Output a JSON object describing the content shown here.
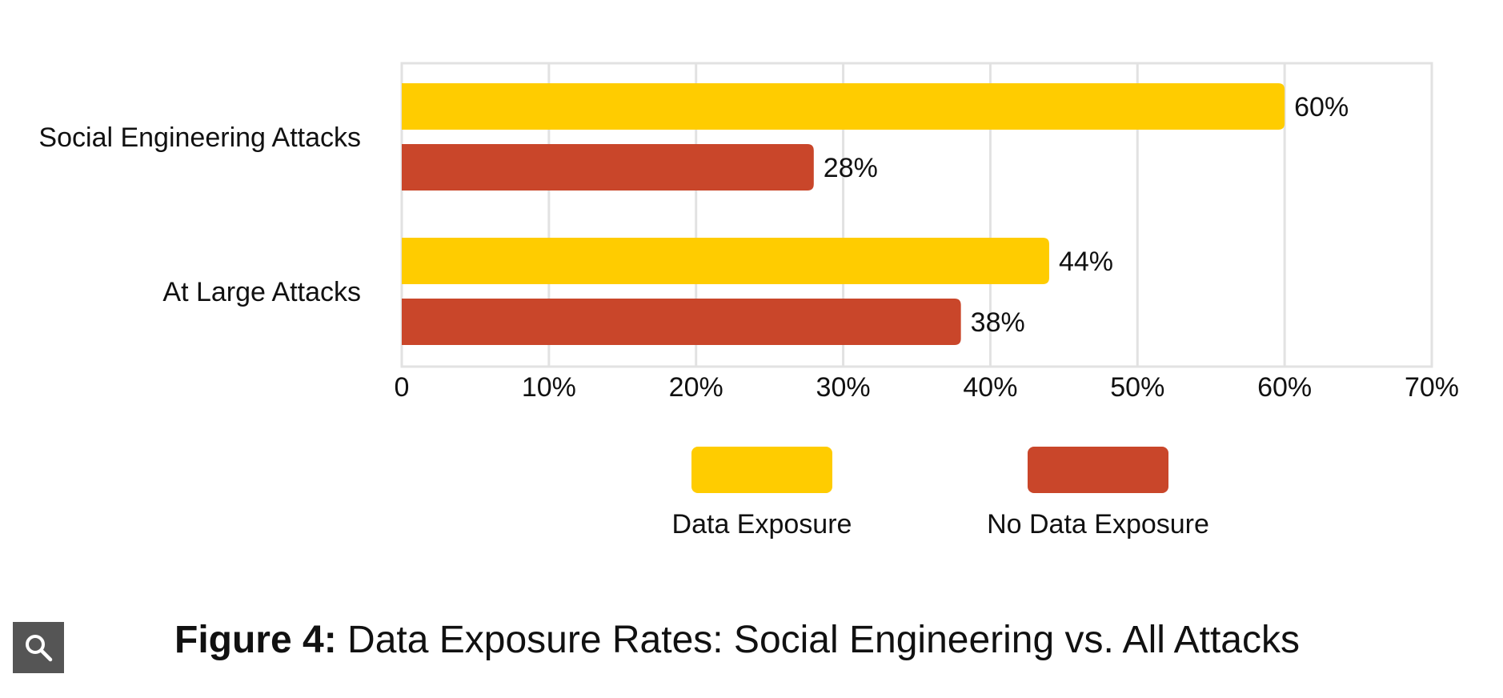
{
  "chart_data": {
    "type": "bar",
    "orientation": "horizontal",
    "categories": [
      "Social Engineering Attacks",
      "At Large Attacks"
    ],
    "series": [
      {
        "name": "Data Exposure",
        "color": "#FFCC00",
        "values": [
          60,
          44
        ],
        "labels": [
          "60%",
          "44%"
        ]
      },
      {
        "name": "No Data Exposure",
        "color": "#C9462A",
        "values": [
          28,
          38
        ],
        "labels": [
          "28%",
          "38%"
        ]
      }
    ],
    "xlim": [
      0,
      70
    ],
    "xticks": [
      0,
      10,
      20,
      30,
      40,
      50,
      60,
      70
    ],
    "xtick_labels": [
      "0",
      "10%",
      "20%",
      "30%",
      "40%",
      "50%",
      "60%",
      "70%"
    ],
    "grid": true,
    "legend_position": "bottom-center",
    "title": "",
    "xlabel": "",
    "ylabel": ""
  },
  "caption": {
    "lead": "Figure 4:",
    "text": " Data Exposure Rates: Social Engineering vs. All Attacks"
  },
  "zoom_button": {
    "icon": "search-icon"
  }
}
